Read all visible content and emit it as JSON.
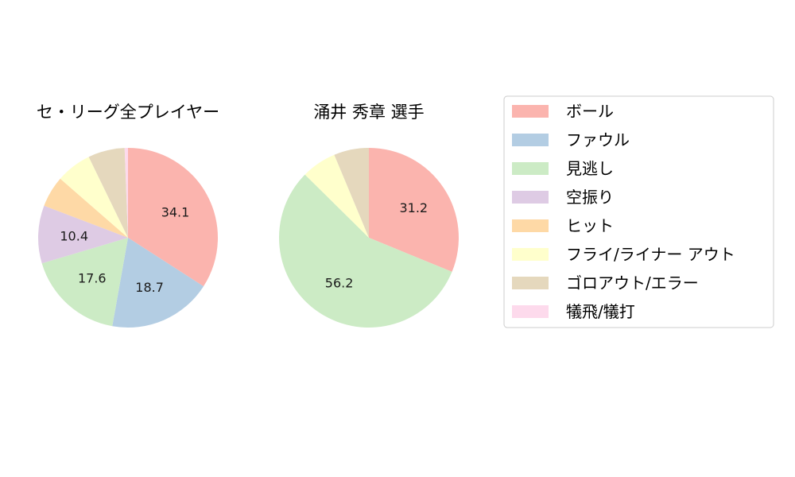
{
  "chart_data": [
    {
      "type": "pie",
      "title": "セ・リーグ全プレイヤー",
      "slices": [
        {
          "label": "ボール",
          "value": 34.1,
          "color": "#fbb4ae"
        },
        {
          "label": "ファウル",
          "value": 18.7,
          "color": "#b3cde3"
        },
        {
          "label": "見逃し",
          "value": 17.6,
          "color": "#ccebc5"
        },
        {
          "label": "空振り",
          "value": 10.4,
          "color": "#decbe4"
        },
        {
          "label": "ヒット",
          "value": 5.6,
          "color": "#fed9a6"
        },
        {
          "label": "フライ/ライナー アウト",
          "value": 6.4,
          "color": "#ffffcc"
        },
        {
          "label": "ゴロアウト/エラー",
          "value": 6.6,
          "color": "#e5d8bd"
        },
        {
          "label": "犠飛/犠打",
          "value": 0.6,
          "color": "#fddaec"
        }
      ],
      "data_labels": [
        "34.1",
        "18.7",
        "17.6",
        "10.4",
        "",
        "",
        "",
        ""
      ]
    },
    {
      "type": "pie",
      "title": "涌井 秀章  選手",
      "slices": [
        {
          "label": "ボール",
          "value": 31.2,
          "color": "#fbb4ae"
        },
        {
          "label": "ファウル",
          "value": 0,
          "color": "#b3cde3"
        },
        {
          "label": "見逃し",
          "value": 56.2,
          "color": "#ccebc5"
        },
        {
          "label": "空振り",
          "value": 0,
          "color": "#decbe4"
        },
        {
          "label": "ヒット",
          "value": 0,
          "color": "#fed9a6"
        },
        {
          "label": "フライ/ライナー アウト",
          "value": 6.3,
          "color": "#ffffcc"
        },
        {
          "label": "ゴロアウト/エラー",
          "value": 6.3,
          "color": "#e5d8bd"
        },
        {
          "label": "犠飛/犠打",
          "value": 0,
          "color": "#fddaec"
        }
      ],
      "data_labels": [
        "31.2",
        "",
        "56.2",
        "",
        "",
        "",
        "",
        ""
      ]
    }
  ],
  "legend": {
    "placement": "right",
    "items": [
      {
        "label": "ボール",
        "color": "#fbb4ae"
      },
      {
        "label": "ファウル",
        "color": "#b3cde3"
      },
      {
        "label": "見逃し",
        "color": "#ccebc5"
      },
      {
        "label": "空振り",
        "color": "#decbe4"
      },
      {
        "label": "ヒット",
        "color": "#fed9a6"
      },
      {
        "label": "フライ/ライナー アウト",
        "color": "#ffffcc"
      },
      {
        "label": "ゴロアウト/エラー",
        "color": "#e5d8bd"
      },
      {
        "label": "犠飛/犠打",
        "color": "#fddaec"
      }
    ]
  }
}
